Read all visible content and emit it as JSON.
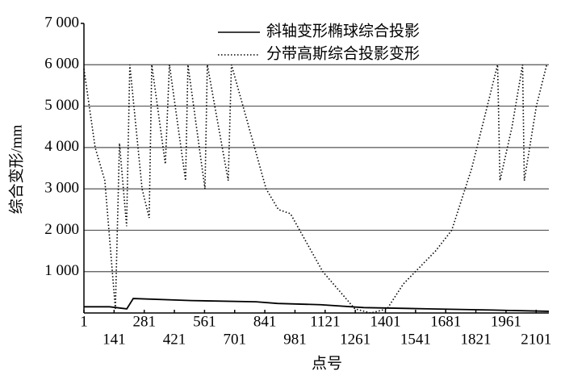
{
  "chart_data": {
    "type": "line",
    "xlabel": "点号",
    "ylabel": "综合变形/mm",
    "xlim": [
      1,
      2160
    ],
    "ylim": [
      0,
      7000
    ],
    "xticks": [
      1,
      141,
      281,
      421,
      561,
      701,
      841,
      981,
      1121,
      1261,
      1401,
      1541,
      1681,
      1821,
      1961,
      2101
    ],
    "yticks": [
      {
        "value": 1000,
        "label": "1 000"
      },
      {
        "value": 2000,
        "label": "2 000"
      },
      {
        "value": 3000,
        "label": "3 000"
      },
      {
        "value": 4000,
        "label": "4 000"
      },
      {
        "value": 5000,
        "label": "5 000"
      },
      {
        "value": 6000,
        "label": "6 000"
      },
      {
        "value": 7000,
        "label": "7 000"
      }
    ],
    "grid": true,
    "series": [
      {
        "name": "斜轴变形椭球综合投影",
        "color": "#000000",
        "style": "solid",
        "x": [
          1,
          120,
          200,
          230,
          500,
          800,
          900,
          1100,
          1300,
          1600,
          1900,
          2160
        ],
        "values": [
          150,
          150,
          100,
          350,
          300,
          270,
          230,
          200,
          130,
          100,
          70,
          40
        ]
      },
      {
        "name": "分带高斯综合投影变形",
        "color": "#000000",
        "style": "dotted",
        "x": [
          1,
          53,
          98,
          147,
          166,
          199,
          214,
          271,
          304,
          316,
          379,
          398,
          473,
          484,
          563,
          574,
          671,
          686,
          847,
          904,
          960,
          1110,
          1259,
          1334,
          1409,
          1484,
          1634,
          1709,
          1802,
          1922,
          1933,
          1989,
          2038,
          2046,
          2102,
          2150
        ],
        "values": [
          5900,
          4000,
          3200,
          100,
          4100,
          2100,
          6000,
          3000,
          2300,
          6000,
          3600,
          6000,
          3200,
          6000,
          3000,
          6000,
          3200,
          6000,
          3000,
          2500,
          2400,
          1000,
          100,
          0,
          100,
          700,
          1500,
          2000,
          3500,
          6000,
          3200,
          4500,
          6000,
          3200,
          5000,
          6000
        ]
      }
    ]
  }
}
